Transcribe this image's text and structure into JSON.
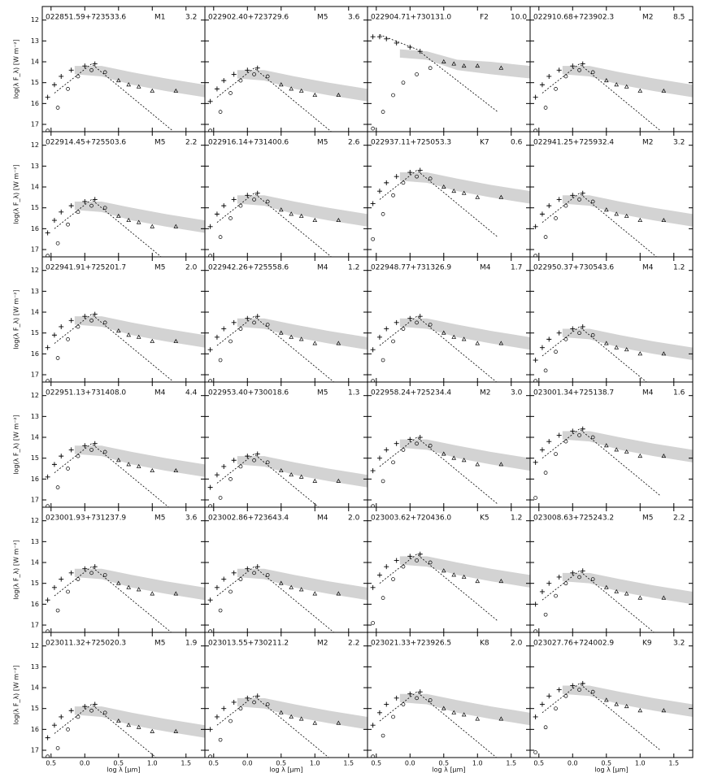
{
  "axes": {
    "xlim": [
      -0.63,
      1.78
    ],
    "ylim": [
      17.35,
      11.35
    ],
    "xticks": [
      {
        "value": -0.5,
        "label": "0.5"
      },
      {
        "value": 0,
        "label": "0.0"
      },
      0.5,
      {
        "value": 1,
        "label": "1.0"
      },
      1.5
    ],
    "yticks": [
      12,
      13,
      14,
      15,
      16,
      17
    ],
    "xlabel": "log λ [µm]",
    "ylabel": "log(λ F_λ) [W m⁻²]",
    "plus_x": [
      -0.55,
      -0.45,
      -0.35,
      -0.2,
      0.0,
      0.15
    ],
    "circle_x": [
      -0.55,
      -0.4,
      -0.25,
      -0.1,
      0.1,
      0.3
    ],
    "triangle_x": [
      0.5,
      0.65,
      0.8,
      1.0,
      1.35
    ],
    "dashed_x": [
      -0.45,
      0.1,
      1.3
    ],
    "band_x": [
      -0.15,
      0.25,
      0.7,
      1.2,
      1.78
    ],
    "band_color": "#d3d3d3"
  },
  "chart_data": [
    {
      "type": "sed",
      "title": "022851.59+723533.6",
      "sptype": "M1",
      "note": "3.2",
      "plus": [
        15.7,
        15.1,
        14.7,
        14.4,
        14.2,
        14.1
      ],
      "circle": [
        17.3,
        16.2,
        15.3,
        14.7,
        14.4,
        14.5
      ],
      "triangle": [
        14.9,
        15.1,
        15.2,
        15.4,
        15.4
      ],
      "dashed": [
        15.5,
        14.1,
        17.3
      ],
      "band_high": [
        14.2,
        14.2,
        14.5,
        14.8,
        15.1
      ],
      "band_low": [
        14.6,
        14.7,
        15.1,
        15.4,
        15.7
      ]
    },
    {
      "type": "sed",
      "title": "022902.40+723729.6",
      "sptype": "M5",
      "note": "3.6",
      "plus": [
        15.9,
        15.3,
        14.9,
        14.6,
        14.4,
        14.3
      ],
      "circle": [
        17.3,
        16.4,
        15.5,
        14.9,
        14.6,
        14.7
      ],
      "triangle": [
        15.1,
        15.3,
        15.4,
        15.6,
        15.6
      ],
      "dashed": [
        15.7,
        14.3,
        17.5
      ],
      "band_high": [
        14.4,
        14.4,
        14.7,
        15.0,
        15.3
      ],
      "band_low": [
        14.8,
        14.9,
        15.3,
        15.6,
        15.9
      ]
    },
    {
      "type": "sed",
      "title": "022904.71+730131.0",
      "sptype": "F2",
      "note": "10.0",
      "plus": [
        12.8,
        12.8,
        12.9,
        13.1,
        13.3,
        13.5
      ],
      "circle": [
        17.2,
        16.4,
        15.6,
        15.0,
        14.6,
        14.3
      ],
      "triangle": [
        14.0,
        14.1,
        14.2,
        14.2,
        14.3
      ],
      "dashed": [
        12.7,
        13.4,
        16.4
      ],
      "band_high": [
        13.4,
        13.5,
        13.9,
        14.0,
        14.2
      ],
      "band_low": [
        13.8,
        13.9,
        14.4,
        14.6,
        14.8
      ]
    },
    {
      "type": "sed",
      "title": "022910.68+723902.3",
      "sptype": "M2",
      "note": "8.5",
      "plus": [
        15.7,
        15.1,
        14.7,
        14.4,
        14.2,
        14.1
      ],
      "circle": [
        17.3,
        16.2,
        15.3,
        14.7,
        14.4,
        14.5
      ],
      "triangle": [
        14.9,
        15.1,
        15.2,
        15.4,
        15.4
      ],
      "dashed": [
        15.5,
        14.1,
        17.3
      ],
      "band_high": [
        14.2,
        14.2,
        14.5,
        14.8,
        15.1
      ],
      "band_low": [
        14.6,
        14.7,
        15.1,
        15.4,
        15.7
      ]
    },
    {
      "type": "sed",
      "title": "022914.45+725503.6",
      "sptype": "M5",
      "note": "2.2",
      "plus": [
        16.2,
        15.6,
        15.2,
        14.9,
        14.7,
        14.6
      ],
      "circle": [
        17.3,
        16.7,
        15.8,
        15.2,
        14.9,
        15.0
      ],
      "triangle": [
        15.4,
        15.6,
        15.7,
        15.9,
        15.9
      ],
      "dashed": [
        16.0,
        14.6,
        17.8
      ],
      "band_high": [
        14.7,
        14.7,
        15.0,
        15.3,
        15.6
      ],
      "band_low": [
        15.1,
        15.2,
        15.6,
        15.9,
        16.2
      ]
    },
    {
      "type": "sed",
      "title": "022916.14+731400.6",
      "sptype": "M5",
      "note": "2.6",
      "plus": [
        15.9,
        15.3,
        14.9,
        14.6,
        14.4,
        14.3
      ],
      "circle": [
        17.3,
        16.4,
        15.5,
        14.9,
        14.6,
        14.7
      ],
      "triangle": [
        15.1,
        15.3,
        15.4,
        15.6,
        15.6
      ],
      "dashed": [
        15.7,
        14.3,
        17.5
      ],
      "band_high": [
        14.4,
        14.4,
        14.7,
        15.0,
        15.3
      ],
      "band_low": [
        14.8,
        14.9,
        15.3,
        15.6,
        15.9
      ]
    },
    {
      "type": "sed",
      "title": "022937.11+725053.3",
      "sptype": "K7",
      "note": "0.6",
      "plus": [
        14.8,
        14.2,
        13.8,
        13.5,
        13.3,
        13.2
      ],
      "circle": [
        16.5,
        15.3,
        14.4,
        13.8,
        13.5,
        13.6
      ],
      "triangle": [
        14.0,
        14.2,
        14.3,
        14.5,
        14.5
      ],
      "dashed": [
        14.6,
        13.2,
        16.4
      ],
      "band_high": [
        13.3,
        13.3,
        13.6,
        13.9,
        14.2
      ],
      "band_low": [
        13.7,
        13.8,
        14.2,
        14.5,
        14.8
      ]
    },
    {
      "type": "sed",
      "title": "022941.25+725932.4",
      "sptype": "M2",
      "note": "3.2",
      "plus": [
        15.9,
        15.3,
        14.9,
        14.6,
        14.4,
        14.3
      ],
      "circle": [
        17.3,
        16.4,
        15.5,
        14.9,
        14.6,
        14.7
      ],
      "triangle": [
        15.1,
        15.3,
        15.4,
        15.6,
        15.6
      ],
      "dashed": [
        15.7,
        14.3,
        17.5
      ],
      "band_high": [
        14.4,
        14.4,
        14.7,
        15.0,
        15.3
      ],
      "band_low": [
        14.8,
        14.9,
        15.3,
        15.6,
        15.9
      ]
    },
    {
      "type": "sed",
      "title": "022941.91+725201.7",
      "sptype": "M5",
      "note": "2.0",
      "plus": [
        15.7,
        15.1,
        14.7,
        14.4,
        14.2,
        14.1
      ],
      "circle": [
        17.3,
        16.2,
        15.3,
        14.7,
        14.4,
        14.5
      ],
      "triangle": [
        14.9,
        15.1,
        15.2,
        15.4,
        15.4
      ],
      "dashed": [
        15.5,
        14.1,
        17.3
      ],
      "band_high": [
        14.2,
        14.2,
        14.5,
        14.8,
        15.1
      ],
      "band_low": [
        14.6,
        14.7,
        15.1,
        15.4,
        15.7
      ]
    },
    {
      "type": "sed",
      "title": "022942.26+725558.6",
      "sptype": "M4",
      "note": "1.2",
      "plus": [
        15.8,
        15.2,
        14.8,
        14.5,
        14.3,
        14.2
      ],
      "circle": [
        17.3,
        16.3,
        15.4,
        14.8,
        14.5,
        14.6
      ],
      "triangle": [
        15.0,
        15.2,
        15.3,
        15.5,
        15.5
      ],
      "dashed": [
        15.6,
        14.2,
        17.4
      ],
      "band_high": [
        14.3,
        14.3,
        14.6,
        14.9,
        15.2
      ],
      "band_low": [
        14.7,
        14.8,
        15.2,
        15.5,
        15.8
      ]
    },
    {
      "type": "sed",
      "title": "022948.77+731326.9",
      "sptype": "M4",
      "note": "1.7",
      "plus": [
        15.8,
        15.2,
        14.8,
        14.5,
        14.3,
        14.2
      ],
      "circle": [
        17.3,
        16.3,
        15.4,
        14.8,
        14.5,
        14.6
      ],
      "triangle": [
        15.0,
        15.2,
        15.3,
        15.5,
        15.5
      ],
      "dashed": [
        15.6,
        14.2,
        17.4
      ],
      "band_high": [
        14.3,
        14.3,
        14.6,
        14.9,
        15.2
      ],
      "band_low": [
        14.7,
        14.8,
        15.2,
        15.5,
        15.8
      ]
    },
    {
      "type": "sed",
      "title": "022950.37+730543.6",
      "sptype": "M4",
      "note": "1.2",
      "plus": [
        16.3,
        15.7,
        15.3,
        15.0,
        14.8,
        14.7
      ],
      "circle": [
        17.3,
        16.8,
        15.9,
        15.3,
        15.0,
        15.1
      ],
      "triangle": [
        15.5,
        15.7,
        15.8,
        16.0,
        16.0
      ],
      "dashed": [
        16.1,
        14.7,
        17.9
      ],
      "band_high": [
        14.8,
        14.8,
        15.1,
        15.4,
        15.7
      ],
      "band_low": [
        15.2,
        15.3,
        15.7,
        16.0,
        16.3
      ]
    },
    {
      "type": "sed",
      "title": "022951.13+731408.0",
      "sptype": "M4",
      "note": "4.4",
      "plus": [
        15.9,
        15.3,
        14.9,
        14.6,
        14.4,
        14.3
      ],
      "circle": [
        17.3,
        16.4,
        15.5,
        14.9,
        14.6,
        14.7
      ],
      "triangle": [
        15.1,
        15.3,
        15.4,
        15.6,
        15.6
      ],
      "dashed": [
        15.7,
        14.3,
        17.5
      ],
      "band_high": [
        14.4,
        14.4,
        14.7,
        15.0,
        15.3
      ],
      "band_low": [
        14.8,
        14.9,
        15.3,
        15.6,
        15.9
      ]
    },
    {
      "type": "sed",
      "title": "022953.40+730018.6",
      "sptype": "M5",
      "note": "1.3",
      "plus": [
        16.4,
        15.8,
        15.4,
        15.1,
        14.9,
        14.8
      ],
      "circle": [
        17.3,
        16.9,
        16.0,
        15.4,
        15.1,
        15.2
      ],
      "triangle": [
        15.6,
        15.8,
        15.9,
        16.1,
        16.1
      ],
      "dashed": [
        16.2,
        14.8,
        18.0
      ],
      "band_high": [
        14.9,
        14.9,
        15.2,
        15.5,
        15.8
      ],
      "band_low": [
        15.3,
        15.4,
        15.8,
        16.1,
        16.4
      ]
    },
    {
      "type": "sed",
      "title": "022958.24+725234.4",
      "sptype": "M2",
      "note": "3.0",
      "plus": [
        15.6,
        15.0,
        14.6,
        14.3,
        14.1,
        14.0
      ],
      "circle": [
        17.3,
        16.1,
        15.2,
        14.6,
        14.3,
        14.4
      ],
      "triangle": [
        14.8,
        15.0,
        15.1,
        15.3,
        15.3
      ],
      "dashed": [
        15.4,
        14.0,
        17.2
      ],
      "band_high": [
        14.1,
        14.1,
        14.4,
        14.7,
        15.0
      ],
      "band_low": [
        14.5,
        14.6,
        15.0,
        15.3,
        15.6
      ]
    },
    {
      "type": "sed",
      "title": "023001.34+725138.7",
      "sptype": "M4",
      "note": "1.6",
      "plus": [
        15.2,
        14.6,
        14.2,
        13.9,
        13.7,
        13.6
      ],
      "circle": [
        16.9,
        15.7,
        14.8,
        14.2,
        13.9,
        14.0
      ],
      "triangle": [
        14.4,
        14.6,
        14.7,
        14.9,
        14.9
      ],
      "dashed": [
        15.0,
        13.6,
        16.8
      ],
      "band_high": [
        13.7,
        13.7,
        14.0,
        14.3,
        14.6
      ],
      "band_low": [
        14.1,
        14.2,
        14.6,
        14.9,
        15.2
      ]
    },
    {
      "type": "sed",
      "title": "023001.93+731237.9",
      "sptype": "M5",
      "note": "3.6",
      "plus": [
        15.8,
        15.2,
        14.8,
        14.5,
        14.3,
        14.2
      ],
      "circle": [
        17.3,
        16.3,
        15.4,
        14.8,
        14.5,
        14.6
      ],
      "triangle": [
        15.0,
        15.2,
        15.3,
        15.5,
        15.5
      ],
      "dashed": [
        15.6,
        14.2,
        17.4
      ],
      "band_high": [
        14.3,
        14.3,
        14.6,
        14.9,
        15.2
      ],
      "band_low": [
        14.7,
        14.8,
        15.2,
        15.5,
        15.8
      ]
    },
    {
      "type": "sed",
      "title": "023002.86+723643.4",
      "sptype": "M4",
      "note": "2.0",
      "plus": [
        15.8,
        15.2,
        14.8,
        14.5,
        14.3,
        14.2
      ],
      "circle": [
        17.3,
        16.3,
        15.4,
        14.8,
        14.5,
        14.6
      ],
      "triangle": [
        15.0,
        15.2,
        15.3,
        15.5,
        15.5
      ],
      "dashed": [
        15.6,
        14.2,
        17.4
      ],
      "band_high": [
        14.3,
        14.3,
        14.6,
        14.9,
        15.2
      ],
      "band_low": [
        14.7,
        14.8,
        15.2,
        15.5,
        15.8
      ]
    },
    {
      "type": "sed",
      "title": "023003.62+720436.0",
      "sptype": "K5",
      "note": "1.2",
      "plus": [
        15.2,
        14.6,
        14.2,
        13.9,
        13.7,
        13.6
      ],
      "circle": [
        16.9,
        15.7,
        14.8,
        14.2,
        13.9,
        14.0
      ],
      "triangle": [
        14.4,
        14.6,
        14.7,
        14.9,
        14.9
      ],
      "dashed": [
        15.0,
        13.6,
        16.8
      ],
      "band_high": [
        13.7,
        13.7,
        14.0,
        14.3,
        14.6
      ],
      "band_low": [
        14.1,
        14.2,
        14.6,
        14.9,
        15.2
      ]
    },
    {
      "type": "sed",
      "title": "023008.63+725243.2",
      "sptype": "M5",
      "note": "2.2",
      "plus": [
        16.0,
        15.4,
        15.0,
        14.7,
        14.5,
        14.4
      ],
      "circle": [
        17.3,
        16.5,
        15.6,
        15.0,
        14.7,
        14.8
      ],
      "triangle": [
        15.2,
        15.4,
        15.5,
        15.7,
        15.7
      ],
      "dashed": [
        15.8,
        14.4,
        17.6
      ],
      "band_high": [
        14.5,
        14.5,
        14.8,
        15.1,
        15.4
      ],
      "band_low": [
        14.9,
        15.0,
        15.4,
        15.7,
        16.0
      ]
    },
    {
      "type": "sed",
      "title": "023011.32+725020.3",
      "sptype": "M5",
      "note": "1.9",
      "plus": [
        16.4,
        15.8,
        15.4,
        15.1,
        14.9,
        14.8
      ],
      "circle": [
        17.3,
        16.9,
        16.0,
        15.4,
        15.1,
        15.2
      ],
      "triangle": [
        15.6,
        15.8,
        15.9,
        16.1,
        16.1
      ],
      "dashed": [
        16.2,
        14.8,
        18.0
      ],
      "band_high": [
        14.9,
        14.9,
        15.2,
        15.5,
        15.8
      ],
      "band_low": [
        15.3,
        15.4,
        15.8,
        16.1,
        16.4
      ]
    },
    {
      "type": "sed",
      "title": "023013.55+730211.2",
      "sptype": "M2",
      "note": "2.2",
      "plus": [
        16.0,
        15.4,
        15.0,
        14.7,
        14.5,
        14.4
      ],
      "circle": [
        17.3,
        16.5,
        15.6,
        15.0,
        14.7,
        14.8
      ],
      "triangle": [
        15.2,
        15.4,
        15.5,
        15.7,
        15.7
      ],
      "dashed": [
        15.8,
        14.4,
        17.6
      ],
      "band_high": [
        14.5,
        14.5,
        14.8,
        15.1,
        15.4
      ],
      "band_low": [
        14.9,
        15.0,
        15.4,
        15.7,
        16.0
      ]
    },
    {
      "type": "sed",
      "title": "023021.33+723926.5",
      "sptype": "K8",
      "note": "2.0",
      "plus": [
        15.8,
        15.2,
        14.8,
        14.5,
        14.3,
        14.2
      ],
      "circle": [
        17.3,
        16.3,
        15.4,
        14.8,
        14.5,
        14.6
      ],
      "triangle": [
        15.0,
        15.2,
        15.3,
        15.5,
        15.5
      ],
      "dashed": [
        15.6,
        14.2,
        17.4
      ],
      "band_high": [
        14.3,
        14.3,
        14.6,
        14.9,
        15.2
      ],
      "band_low": [
        14.7,
        14.8,
        15.2,
        15.5,
        15.8
      ]
    },
    {
      "type": "sed",
      "title": "023027.76+724002.9",
      "sptype": "K9",
      "note": "3.2",
      "plus": [
        15.4,
        14.8,
        14.4,
        14.1,
        13.9,
        13.8
      ],
      "circle": [
        17.1,
        15.9,
        15.0,
        14.4,
        14.1,
        14.2
      ],
      "triangle": [
        14.6,
        14.8,
        14.9,
        15.1,
        15.1
      ],
      "dashed": [
        15.2,
        13.8,
        17.0
      ],
      "band_high": [
        13.9,
        13.9,
        14.2,
        14.5,
        14.8
      ],
      "band_low": [
        14.3,
        14.4,
        14.8,
        15.1,
        15.4
      ]
    }
  ]
}
